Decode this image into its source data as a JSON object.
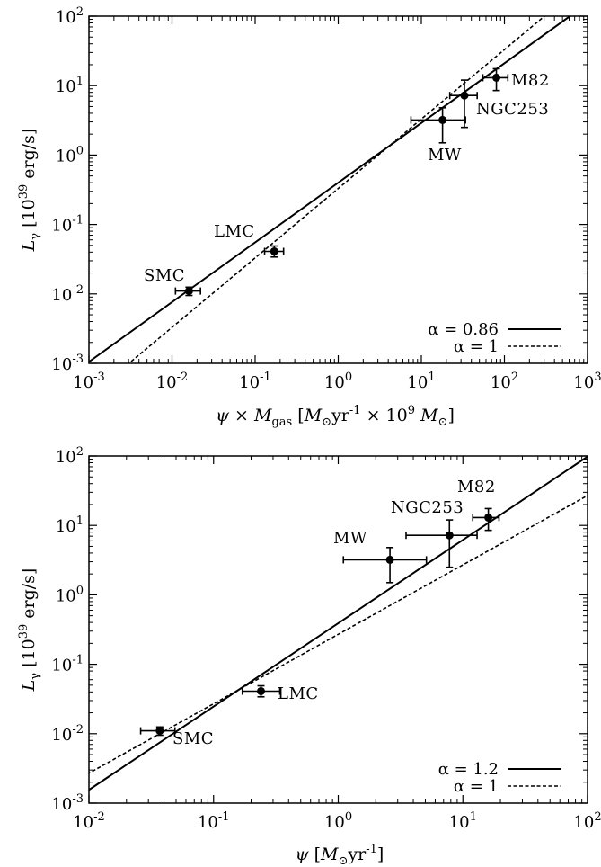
{
  "chart_data": [
    {
      "type": "scatter",
      "id": "top",
      "xscale": "log",
      "yscale": "log",
      "xlim": [
        0.001,
        1000
      ],
      "ylim": [
        0.001,
        100
      ],
      "x_ticks": [
        {
          "v": 0.001,
          "base": "10",
          "exp": "-3"
        },
        {
          "v": 0.01,
          "base": "10",
          "exp": "-2"
        },
        {
          "v": 0.1,
          "base": "10",
          "exp": "-1"
        },
        {
          "v": 1,
          "base": "10",
          "exp": "0"
        },
        {
          "v": 10,
          "base": "10",
          "exp": "1"
        },
        {
          "v": 100,
          "base": "10",
          "exp": "2"
        },
        {
          "v": 1000,
          "base": "10",
          "exp": "3"
        }
      ],
      "y_ticks": [
        {
          "v": 0.001,
          "base": "10",
          "exp": "-3"
        },
        {
          "v": 0.01,
          "base": "10",
          "exp": "-2"
        },
        {
          "v": 0.1,
          "base": "10",
          "exp": "-1"
        },
        {
          "v": 1,
          "base": "10",
          "exp": "0"
        },
        {
          "v": 10,
          "base": "10",
          "exp": "1"
        },
        {
          "v": 100,
          "base": "10",
          "exp": "2"
        }
      ],
      "ylabel": {
        "main": "L",
        "sub": "γ",
        "rest": " [10",
        "sup": "39",
        "unit": " erg/s]"
      },
      "xlabel_text": "ψ × M_gas [M_⊙yr^-1 × 10^9 M_⊙]",
      "points": [
        {
          "name": "SMC",
          "x": 0.016,
          "xlo": 0.011,
          "xhi": 0.022,
          "y": 0.011,
          "ylo": 0.0095,
          "yhi": 0.0125
        },
        {
          "name": "LMC",
          "x": 0.17,
          "xlo": 0.13,
          "xhi": 0.22,
          "y": 0.041,
          "ylo": 0.034,
          "yhi": 0.049
        },
        {
          "name": "MW",
          "x": 18,
          "xlo": 7.5,
          "xhi": 34,
          "y": 3.2,
          "ylo": 1.5,
          "yhi": 4.8
        },
        {
          "name": "NGC253",
          "x": 33,
          "xlo": 22,
          "xhi": 47,
          "y": 7.2,
          "ylo": 2.5,
          "yhi": 12
        },
        {
          "name": "M82",
          "x": 80,
          "xlo": 55,
          "xhi": 110,
          "y": 13,
          "ylo": 8.5,
          "yhi": 17.5
        }
      ],
      "fits": [
        {
          "label": "α = 0.86",
          "slope": 0.86,
          "value_at_1": 0.4,
          "style": "solid"
        },
        {
          "label": "α = 1",
          "slope": 1,
          "value_at_1": 0.33,
          "style": "dashed"
        }
      ]
    },
    {
      "type": "scatter",
      "id": "bottom",
      "xscale": "log",
      "yscale": "log",
      "xlim": [
        0.01,
        100
      ],
      "ylim": [
        0.001,
        100
      ],
      "x_ticks": [
        {
          "v": 0.01,
          "base": "10",
          "exp": "-2"
        },
        {
          "v": 0.1,
          "base": "10",
          "exp": "-1"
        },
        {
          "v": 1,
          "base": "10",
          "exp": "0"
        },
        {
          "v": 10,
          "base": "10",
          "exp": "1"
        },
        {
          "v": 100,
          "base": "10",
          "exp": "2"
        }
      ],
      "y_ticks": [
        {
          "v": 0.001,
          "base": "10",
          "exp": "-3"
        },
        {
          "v": 0.01,
          "base": "10",
          "exp": "-2"
        },
        {
          "v": 0.1,
          "base": "10",
          "exp": "-1"
        },
        {
          "v": 1,
          "base": "10",
          "exp": "0"
        },
        {
          "v": 10,
          "base": "10",
          "exp": "1"
        },
        {
          "v": 100,
          "base": "10",
          "exp": "2"
        }
      ],
      "ylabel": {
        "main": "L",
        "sub": "γ",
        "rest": " [10",
        "sup": "39",
        "unit": " erg/s]"
      },
      "xlabel_text": "ψ [M_⊙yr^-1]",
      "points": [
        {
          "name": "SMC",
          "x": 0.037,
          "xlo": 0.026,
          "xhi": 0.049,
          "y": 0.011,
          "ylo": 0.0095,
          "yhi": 0.0125
        },
        {
          "name": "LMC",
          "x": 0.24,
          "xlo": 0.17,
          "xhi": 0.34,
          "y": 0.041,
          "ylo": 0.034,
          "yhi": 0.049
        },
        {
          "name": "MW",
          "x": 2.6,
          "xlo": 1.1,
          "xhi": 5.1,
          "y": 3.2,
          "ylo": 1.5,
          "yhi": 4.8
        },
        {
          "name": "NGC253",
          "x": 7.8,
          "xlo": 3.5,
          "xhi": 13,
          "y": 7.2,
          "ylo": 2.5,
          "yhi": 12
        },
        {
          "name": "M82",
          "x": 16,
          "xlo": 12,
          "xhi": 19.5,
          "y": 13,
          "ylo": 8.5,
          "yhi": 17.5
        }
      ],
      "fits": [
        {
          "label": "α = 1.2",
          "slope": 1.2,
          "value_at_1": 0.39,
          "style": "solid"
        },
        {
          "label": "α = 1",
          "slope": 1,
          "value_at_1": 0.27,
          "style": "dashed"
        }
      ]
    }
  ]
}
